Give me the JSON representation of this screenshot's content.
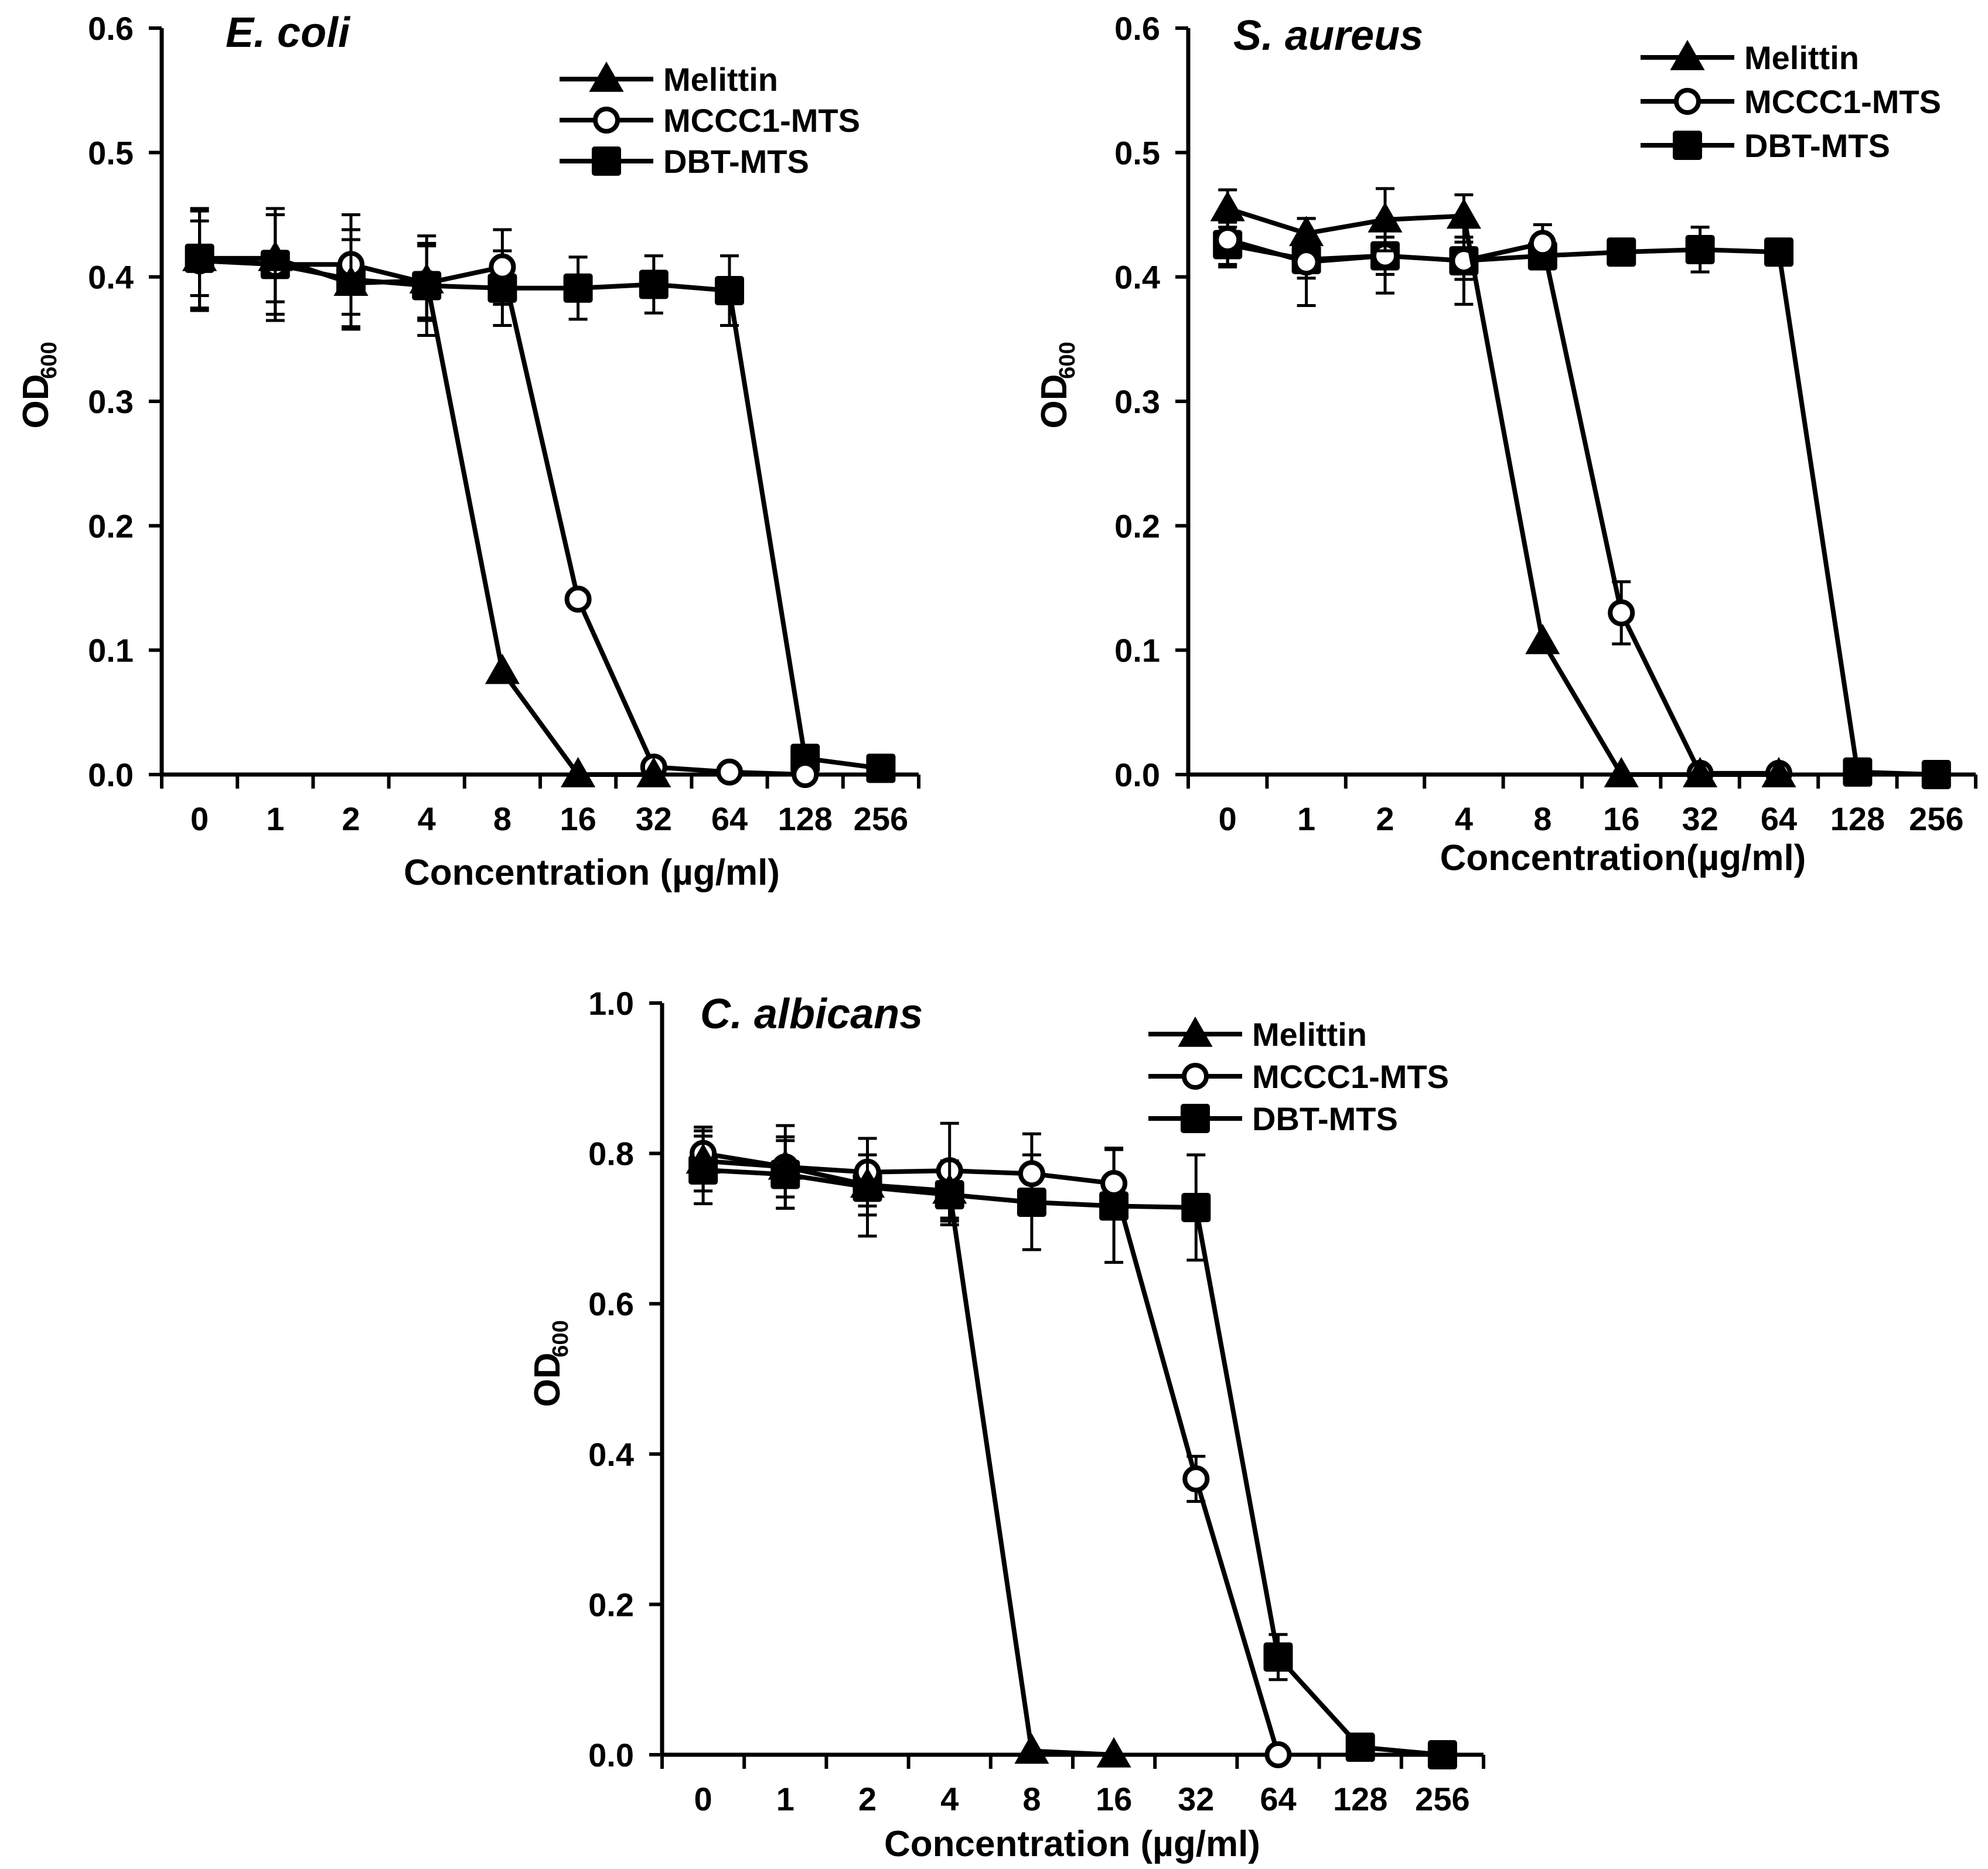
{
  "figure": {
    "panels": [
      "E. coli",
      "S. aureus",
      "C. albicans"
    ]
  },
  "chart_data": [
    {
      "type": "line",
      "title": "E. coli",
      "xlabel": "Concentration (µg/ml)",
      "ylabel_main": "OD",
      "ylabel_sub": "600",
      "categories": [
        "0",
        "1",
        "2",
        "4",
        "8",
        "16",
        "32",
        "64",
        "128",
        "256"
      ],
      "ylim": [
        0,
        0.6
      ],
      "yticks": [
        0,
        0.1,
        0.2,
        0.3,
        0.4,
        0.5,
        0.6
      ],
      "ytick_labels": [
        "0.0",
        "0.1",
        "0.2",
        "0.3",
        "0.4",
        "0.5",
        "0.6"
      ],
      "legend_position": "top-right",
      "series": [
        {
          "name": "Melittin",
          "marker": "triangle",
          "values": [
            0.415,
            0.415,
            0.395,
            0.397,
            0.083,
            0.0,
            0.0,
            null,
            null,
            null
          ],
          "errors": [
            0.03,
            0.035,
            0.035,
            0.03,
            null,
            null,
            null,
            null,
            null,
            null
          ]
        },
        {
          "name": "MCCC1-MTS",
          "marker": "circle",
          "values": [
            0.413,
            0.41,
            0.41,
            0.395,
            0.408,
            0.141,
            0.006,
            0.002,
            0.0,
            null
          ],
          "errors": [
            0.04,
            0.04,
            0.04,
            0.03,
            0.03,
            null,
            null,
            null,
            null,
            null
          ]
        },
        {
          "name": "DBT-MTS",
          "marker": "square",
          "values": [
            0.415,
            0.41,
            0.398,
            0.393,
            0.391,
            0.391,
            0.394,
            0.389,
            0.013,
            0.005
          ],
          "errors": [
            0.04,
            0.045,
            0.04,
            0.04,
            0.03,
            0.025,
            0.023,
            0.028,
            null,
            null
          ]
        }
      ]
    },
    {
      "type": "line",
      "title": "S. aureus",
      "xlabel": "Concentration(µg/ml)",
      "ylabel_main": "OD",
      "ylabel_sub": "600",
      "categories": [
        "0",
        "1",
        "2",
        "4",
        "8",
        "16",
        "32",
        "64",
        "128",
        "256"
      ],
      "ylim": [
        0,
        0.6
      ],
      "yticks": [
        0,
        0.1,
        0.2,
        0.3,
        0.4,
        0.5,
        0.6
      ],
      "ytick_labels": [
        "0.0",
        "0.1",
        "0.2",
        "0.3",
        "0.4",
        "0.5",
        "0.6"
      ],
      "legend_position": "top-right",
      "series": [
        {
          "name": "Melittin",
          "marker": "triangle",
          "values": [
            0.455,
            0.435,
            0.446,
            0.449,
            0.107,
            0.0,
            0.0,
            0.0,
            null,
            null
          ],
          "errors": [
            0.015,
            0.012,
            0.025,
            0.017,
            null,
            null,
            null,
            null,
            null,
            null
          ]
        },
        {
          "name": "MCCC1-MTS",
          "marker": "circle",
          "values": [
            0.43,
            0.412,
            0.417,
            0.413,
            0.427,
            0.13,
            0.001,
            0.001,
            null,
            null
          ],
          "errors": [
            0.02,
            0.035,
            0.03,
            0.035,
            0.015,
            0.025,
            null,
            null,
            null,
            null
          ]
        },
        {
          "name": "DBT-MTS",
          "marker": "square",
          "values": [
            0.426,
            0.414,
            0.417,
            0.413,
            0.417,
            0.42,
            0.422,
            0.42,
            0.002,
            0.0
          ],
          "errors": [
            0.018,
            0.015,
            0.015,
            0.015,
            0.01,
            0.01,
            0.018,
            0.01,
            null,
            null
          ]
        }
      ]
    },
    {
      "type": "line",
      "title": "C. albicans",
      "xlabel": "Concentration (µg/ml)",
      "ylabel_main": "OD",
      "ylabel_sub": "600",
      "categories": [
        "0",
        "1",
        "2",
        "4",
        "8",
        "16",
        "32",
        "64",
        "128",
        "256"
      ],
      "ylim": [
        0,
        1.0
      ],
      "yticks": [
        0,
        0.2,
        0.4,
        0.6,
        0.8,
        1.0
      ],
      "ytick_labels": [
        "0.0",
        "0.2",
        "0.4",
        "0.6",
        "0.8",
        "1.0"
      ],
      "legend_position": "top-right",
      "series": [
        {
          "name": "Melittin",
          "marker": "triangle",
          "values": [
            0.79,
            0.782,
            0.758,
            0.75,
            0.005,
            0.0,
            null,
            null,
            null,
            null
          ],
          "errors": [
            0.04,
            0.04,
            0.04,
            0.04,
            null,
            null,
            null,
            null,
            null,
            null
          ]
        },
        {
          "name": "MCCC1-MTS",
          "marker": "circle",
          "values": [
            0.8,
            0.782,
            0.775,
            0.777,
            0.773,
            0.76,
            0.367,
            0.0,
            null,
            null
          ],
          "errors": [
            0.035,
            0.055,
            0.045,
            0.063,
            0.053,
            0.047,
            0.03,
            null,
            null,
            null
          ]
        },
        {
          "name": "DBT-MTS",
          "marker": "square",
          "values": [
            0.778,
            0.772,
            0.755,
            0.745,
            0.735,
            0.73,
            0.728,
            0.13,
            0.01,
            0.0
          ],
          "errors": [
            0.045,
            0.045,
            0.065,
            0.04,
            0.063,
            0.075,
            0.07,
            0.03,
            null,
            null
          ]
        }
      ]
    }
  ]
}
